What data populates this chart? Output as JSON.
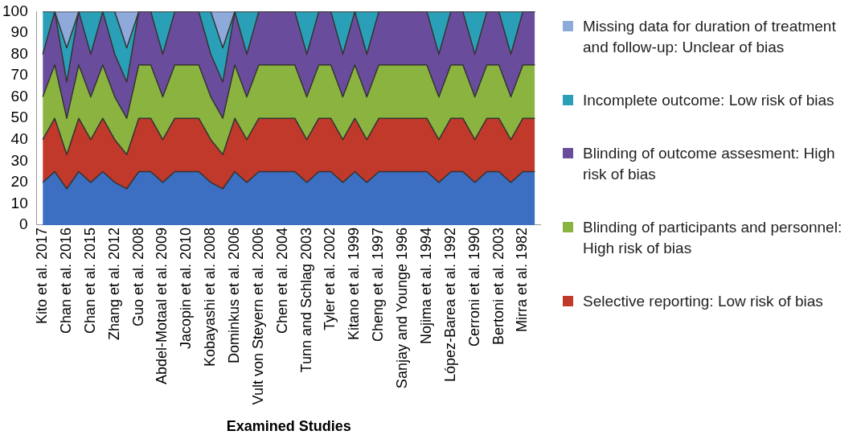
{
  "chart_data": {
    "type": "area",
    "stacked": true,
    "xlabel": "Examined Studies",
    "categories": [
      "Kito et al. 2017",
      null,
      "Chan et al. 2016",
      null,
      "Chan et al. 2015",
      null,
      "Zhang et al. 2012",
      null,
      "Guo et al. 2008",
      null,
      "Abdel-Motaal et al. 2009",
      null,
      "Jacopin et al. 2010",
      null,
      "Kobayashi et al. 2008",
      null,
      "Dominkus et al. 2006",
      null,
      "Vult von Steyern et al. 2006",
      null,
      "Chen et al. 2004",
      null,
      "Tunn and Schlag 2003",
      null,
      "Tyler et al. 2002",
      null,
      "Kitano et al. 1999",
      null,
      "Cheng et al. 1997",
      null,
      "Sanjay and Younge 1996",
      null,
      "Nojima et al. 1994",
      null,
      "López-Barea et al. 1992",
      null,
      "Cerroni et al. 1990",
      null,
      "Bertoni et al. 2003",
      null,
      "Mirra et al. 1982",
      null
    ],
    "ylim": [
      0,
      100
    ],
    "yticks": [
      0,
      10,
      20,
      30,
      40,
      50,
      60,
      70,
      80,
      90,
      100
    ],
    "grid": false,
    "legend": "right",
    "series": [
      {
        "color": "#3c6fc1",
        "values": [
          20,
          25,
          17,
          25,
          20,
          25,
          20,
          17,
          25,
          25,
          20,
          25,
          25,
          25,
          20,
          17,
          25,
          20,
          25,
          25,
          25,
          25,
          20,
          25,
          25,
          20,
          25,
          20,
          25,
          25,
          25,
          25,
          25,
          20,
          25,
          25,
          20,
          25,
          25,
          20,
          25,
          25
        ]
      },
      {
        "name": "Selective reporting: Low risk of bias",
        "color": "#c0392b",
        "values": [
          20,
          25,
          16,
          25,
          20,
          25,
          20,
          16,
          25,
          25,
          20,
          25,
          25,
          25,
          20,
          16,
          25,
          20,
          25,
          25,
          25,
          25,
          20,
          25,
          25,
          20,
          25,
          20,
          25,
          25,
          25,
          25,
          25,
          20,
          25,
          25,
          20,
          25,
          25,
          20,
          25,
          25
        ]
      },
      {
        "name": "Blinding of participants and personnel: High risk of bias",
        "color": "#8ab43f",
        "values": [
          20,
          25,
          17,
          25,
          20,
          25,
          20,
          17,
          25,
          25,
          20,
          25,
          25,
          25,
          20,
          17,
          25,
          20,
          25,
          25,
          25,
          25,
          20,
          25,
          25,
          20,
          25,
          20,
          25,
          25,
          25,
          25,
          25,
          20,
          25,
          25,
          20,
          25,
          25,
          20,
          25,
          25
        ]
      },
      {
        "name": "Blinding of outcome assesment: High risk of bias",
        "color": "#6a4c9c",
        "values": [
          20,
          25,
          17,
          25,
          20,
          25,
          20,
          17,
          25,
          25,
          20,
          25,
          25,
          25,
          20,
          17,
          25,
          20,
          25,
          25,
          25,
          25,
          20,
          25,
          25,
          20,
          25,
          20,
          25,
          25,
          25,
          25,
          25,
          20,
          25,
          25,
          20,
          25,
          25,
          20,
          25,
          25
        ]
      },
      {
        "name": "Incomplete outcome: Low risk of bias",
        "color": "#2aa0b8",
        "values": [
          20,
          0,
          16,
          0,
          20,
          0,
          20,
          16,
          0,
          0,
          20,
          0,
          0,
          0,
          20,
          16,
          0,
          20,
          0,
          0,
          0,
          0,
          20,
          0,
          0,
          20,
          0,
          20,
          0,
          0,
          0,
          0,
          0,
          20,
          0,
          0,
          20,
          0,
          0,
          20,
          0,
          0
        ]
      },
      {
        "name": "Missing data for duration of treatment and follow-up: Unclear of bias",
        "color": "#8eaadb",
        "values": [
          0,
          0,
          17,
          0,
          0,
          0,
          0,
          17,
          0,
          0,
          0,
          0,
          0,
          0,
          0,
          17,
          0,
          0,
          0,
          0,
          0,
          0,
          0,
          0,
          0,
          0,
          0,
          0,
          0,
          0,
          0,
          0,
          0,
          0,
          0,
          0,
          0,
          0,
          0,
          0,
          0,
          0
        ]
      }
    ]
  }
}
